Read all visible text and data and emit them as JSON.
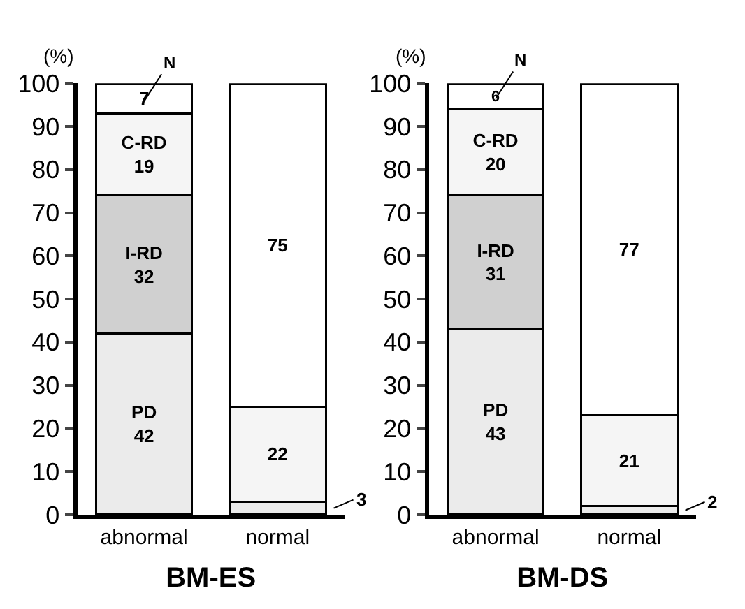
{
  "chart_data": [
    {
      "type": "bar",
      "stacked": true,
      "ylabel": "(%)",
      "xlabel": "BM-ES",
      "categories": [
        "abnormal",
        "normal"
      ],
      "ylim": [
        0,
        100
      ],
      "yticks": [
        0,
        10,
        20,
        30,
        40,
        50,
        60,
        70,
        80,
        90,
        100
      ],
      "data_labels": true,
      "legend": false,
      "series": [
        {
          "name": "PD",
          "color": "#ebebeb",
          "values": [
            42,
            3
          ]
        },
        {
          "name": "I-RD",
          "color": "#d0d0d0",
          "values": [
            32,
            null
          ]
        },
        {
          "name": "C-RD",
          "color": "#f5f5f5",
          "values": [
            19,
            22
          ]
        },
        {
          "name": "N",
          "color": "#ffffff",
          "values": [
            7,
            75
          ]
        }
      ]
    },
    {
      "type": "bar",
      "stacked": true,
      "ylabel": "(%)",
      "xlabel": "BM-DS",
      "categories": [
        "abnormal",
        "normal"
      ],
      "ylim": [
        0,
        100
      ],
      "yticks": [
        0,
        10,
        20,
        30,
        40,
        50,
        60,
        70,
        80,
        90,
        100
      ],
      "data_labels": true,
      "legend": false,
      "series": [
        {
          "name": "PD",
          "color": "#ebebeb",
          "values": [
            43,
            2
          ]
        },
        {
          "name": "I-RD",
          "color": "#d0d0d0",
          "values": [
            31,
            null
          ]
        },
        {
          "name": "C-RD",
          "color": "#f5f5f5",
          "values": [
            20,
            21
          ]
        },
        {
          "name": "N",
          "color": "#ffffff",
          "values": [
            6,
            77
          ]
        }
      ]
    }
  ]
}
